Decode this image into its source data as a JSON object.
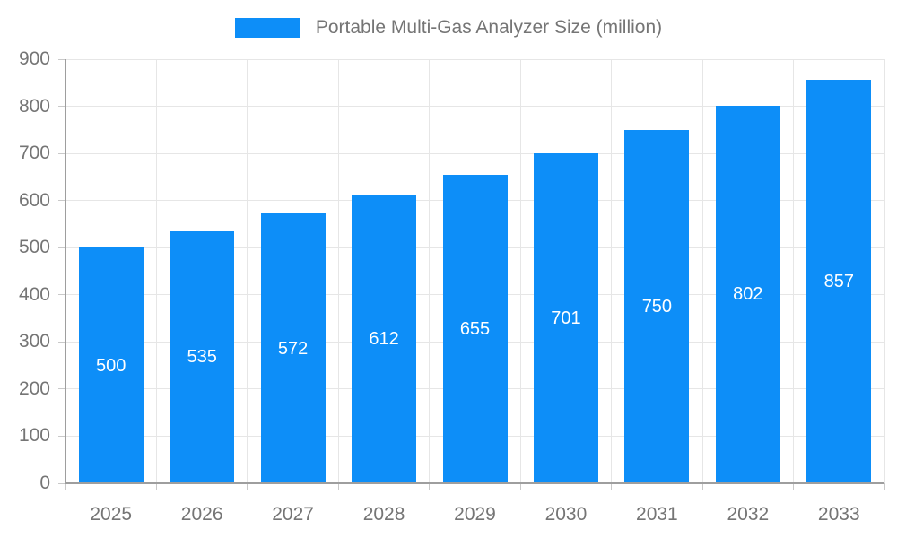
{
  "legend": {
    "label": "Portable Multi-Gas Analyzer Size (million)"
  },
  "chart_data": {
    "type": "bar",
    "title": "Portable Multi-Gas Analyzer Size (million)",
    "categories": [
      "2025",
      "2026",
      "2027",
      "2028",
      "2029",
      "2030",
      "2031",
      "2032",
      "2033"
    ],
    "values": [
      500,
      535,
      572,
      612,
      655,
      701,
      750,
      802,
      857
    ],
    "xlabel": "",
    "ylabel": "",
    "ylim": [
      0,
      900
    ],
    "ytick_step": 100,
    "yticks": [
      0,
      100,
      200,
      300,
      400,
      500,
      600,
      700,
      800,
      900
    ],
    "grid": true,
    "legend_position": "top-center",
    "bar_labels_inside": true,
    "colors": {
      "bar": "#0d8ef8",
      "bar_label": "#ffffff",
      "axis_text": "#757575",
      "axis_line": "#9e9e9e",
      "tick": "#c9c9c9",
      "grid": "#e6e6e6"
    }
  }
}
